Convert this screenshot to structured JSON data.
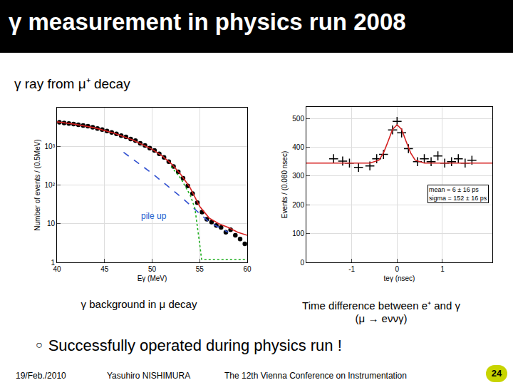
{
  "slide": {
    "title": "γ measurement in physics run 2008",
    "subtitle": "γ ray from μ⁺ decay",
    "captions": [
      [
        "γ background in μ decay"
      ],
      [
        "Time difference between e⁺ and γ",
        "(μ → eννγ)"
      ]
    ],
    "bullet": "Successfully operated during physics run !",
    "footer": {
      "date": "19/Feb./2010",
      "author": "Yasuhiro NISHIMURA",
      "conference": "The 12th Vienna Conference on Instrumentation",
      "page": "24"
    }
  },
  "chart_data": [
    {
      "type": "scatter",
      "x_label": "Eγ (MeV)",
      "y_label": "Number of events / (0.5MeV)",
      "log": "y",
      "grid": true,
      "xlim": [
        40,
        60
      ],
      "xticks": [
        40,
        45,
        50,
        55,
        60
      ],
      "ylim": [
        1,
        10000
      ],
      "yticks": [
        1,
        10,
        {
          "value": 100,
          "label": "10²"
        },
        {
          "value": 1000,
          "label": "10³"
        }
      ],
      "series": [
        {
          "type": "scatter",
          "color": "#000000",
          "marker": "circle",
          "x": [
            40.25,
            40.75,
            41.25,
            41.75,
            42.25,
            42.75,
            43.25,
            43.75,
            44.25,
            44.75,
            45.25,
            45.75,
            46.25,
            46.75,
            47.25,
            47.75,
            48.25,
            48.75,
            49.25,
            49.75,
            50.25,
            50.75,
            51.25,
            51.75,
            52.25,
            52.75,
            53.25,
            53.75,
            54.25,
            54.75,
            55.25,
            55.75,
            56.25,
            56.75,
            57.25,
            57.75,
            58.25,
            58.75,
            59.25,
            59.75
          ],
          "values": [
            4200,
            4000,
            3900,
            3750,
            3600,
            3450,
            3300,
            3100,
            2900,
            2700,
            2500,
            2300,
            2100,
            1900,
            1750,
            1550,
            1400,
            1200,
            1050,
            900,
            780,
            640,
            520,
            400,
            300,
            220,
            150,
            95,
            60,
            35,
            20,
            13,
            11,
            9,
            8,
            6,
            7,
            5,
            4,
            3
          ]
        },
        {
          "type": "line",
          "color": "#d62020",
          "line_style": "solid",
          "x": [
            40,
            42,
            44,
            46,
            48,
            50,
            51,
            52,
            53,
            54,
            55,
            56,
            57,
            58,
            59,
            60
          ],
          "values": [
            4300,
            3700,
            3000,
            2200,
            1450,
            840,
            580,
            360,
            190,
            85,
            28,
            14,
            10,
            8,
            6,
            5
          ]
        },
        {
          "type": "line",
          "color": "#3050d0",
          "line_style": "dash",
          "x": [
            47,
            50,
            53,
            56,
            58
          ],
          "values": [
            700,
            200,
            50,
            11,
            6
          ]
        },
        {
          "type": "line",
          "color": "#20b020",
          "line_style": "dot",
          "x": [
            52,
            53,
            54,
            54.5,
            55,
            55.2,
            56,
            60
          ],
          "values": [
            300,
            150,
            55,
            25,
            3,
            1.2,
            1.2,
            1.2
          ]
        }
      ],
      "annotations": [
        {
          "text": "pile up",
          "x": 50.2,
          "y": 16,
          "color": "#2060d0"
        }
      ]
    },
    {
      "type": "scatter",
      "x_label": "teγ (nsec)",
      "y_label": "Events / (0.080 nsec)",
      "grid": true,
      "xlim": [
        -2,
        2.1
      ],
      "xticks": [
        -1,
        0,
        1
      ],
      "ylim": [
        0,
        540
      ],
      "yticks": [
        0,
        100,
        200,
        300,
        400,
        500
      ],
      "series": [
        {
          "type": "scatter",
          "color": "#000000",
          "marker": "cross",
          "x": [
            -1.4,
            -1.2,
            -1.05,
            -0.85,
            -0.6,
            -0.45,
            -0.3,
            -0.1,
            0,
            0.1,
            0.25,
            0.45,
            0.6,
            0.75,
            0.9,
            1.05,
            1.2,
            1.35,
            1.5,
            1.65
          ],
          "values": [
            360,
            352,
            345,
            330,
            335,
            360,
            375,
            460,
            490,
            450,
            395,
            350,
            360,
            350,
            370,
            345,
            350,
            360,
            345,
            355
          ]
        },
        {
          "type": "line",
          "color": "#d62020",
          "line_style": "solid",
          "x": [
            -2,
            -0.6,
            -0.4,
            -0.3,
            -0.2,
            -0.1,
            0,
            0.1,
            0.2,
            0.3,
            0.4,
            0.6,
            2.1
          ],
          "values": [
            345,
            345,
            355,
            380,
            420,
            462,
            478,
            462,
            420,
            380,
            355,
            345,
            345
          ]
        }
      ],
      "annotations": [
        {
          "text": "mean = 6 ± 16 ps"
        },
        {
          "text": "sigma = 152 ± 16 ps"
        }
      ]
    }
  ]
}
